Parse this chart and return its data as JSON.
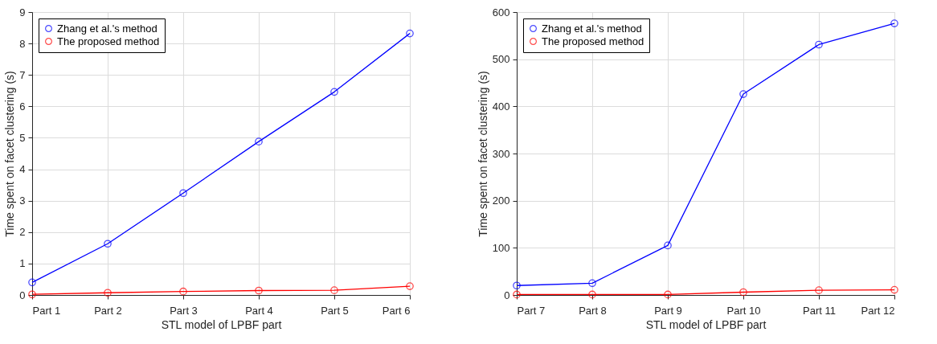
{
  "chart_data": [
    {
      "type": "line",
      "xlabel": "STL model of LPBF part",
      "ylabel": "Time spent on facet clustering (s)",
      "categories": [
        "Part 1",
        "Part 2",
        "Part 3",
        "Part 4",
        "Part 5",
        "Part 6"
      ],
      "series": [
        {
          "name": "Zhang et al.'s method",
          "color": "#0000ff",
          "values": [
            0.4,
            1.63,
            3.24,
            4.88,
            6.46,
            8.32
          ]
        },
        {
          "name": "The proposed method",
          "color": "#ff0000",
          "values": [
            0.02,
            0.07,
            0.11,
            0.14,
            0.15,
            0.28
          ]
        }
      ],
      "ylim": [
        0,
        9
      ],
      "yticks": [
        0,
        1,
        2,
        3,
        4,
        5,
        6,
        7,
        8,
        9
      ],
      "grid": true,
      "legend": "top left",
      "marker": "circle",
      "line_style": "solid"
    },
    {
      "type": "line",
      "xlabel": "STL model of LPBF part",
      "ylabel": "Time spent on facet clustering (s)",
      "categories": [
        "Part 7",
        "Part 8",
        "Part 9",
        "Part 10",
        "Part 11",
        "Part 12"
      ],
      "series": [
        {
          "name": "Zhang et al.'s method",
          "color": "#0000ff",
          "values": [
            20,
            25,
            105,
            426,
            531,
            576
          ]
        },
        {
          "name": "The proposed method",
          "color": "#ff0000",
          "values": [
            1,
            1,
            1,
            6,
            10,
            11
          ]
        }
      ],
      "ylim": [
        0,
        600
      ],
      "yticks": [
        0,
        100,
        200,
        300,
        400,
        500,
        600
      ],
      "grid": true,
      "legend": "top left",
      "marker": "circle",
      "line_style": "solid"
    }
  ]
}
